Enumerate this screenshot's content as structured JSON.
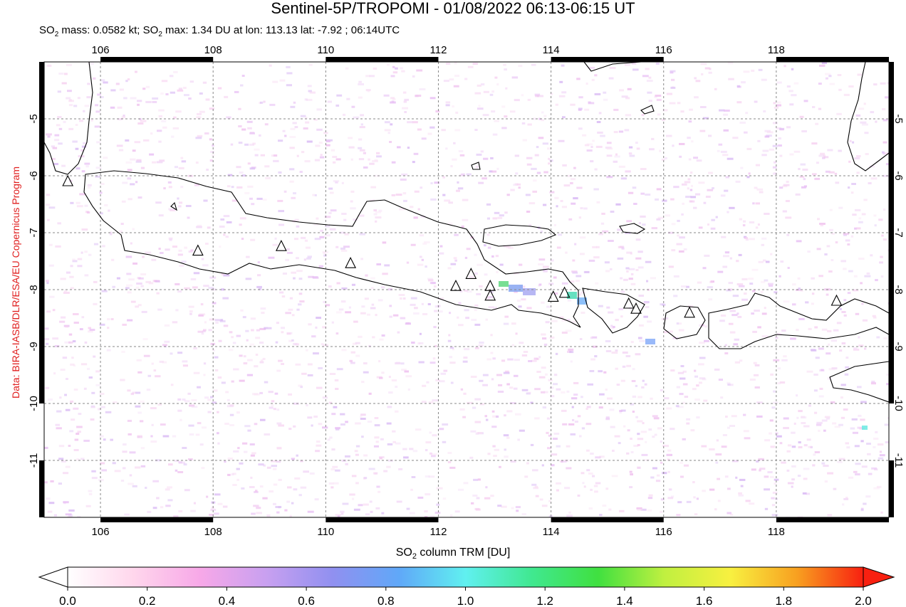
{
  "title": "Sentinel-5P/TROPOMI - 01/08/2022 06:13-06:15 UT",
  "subtitle": {
    "mass_prefix": "SO",
    "mass_sub": "2",
    "mass_text": " mass: 0.0582 kt; SO",
    "max_sub": "2",
    "max_text": " max: 1.34 DU at lon: 113.13 lat: -7.92 ; 06:14UTC"
  },
  "credit": "Data: BIRA-IASB/DLR/ESA/EU Copernicus Program",
  "map": {
    "lon_range": [
      105.0,
      120.0
    ],
    "lat_range": [
      -12.0,
      -4.0
    ],
    "lon_ticks": [
      "106",
      "108",
      "110",
      "112",
      "114",
      "116",
      "118"
    ],
    "lat_ticks": [
      "-5",
      "-6",
      "-7",
      "-8",
      "-9",
      "-10",
      "-11"
    ],
    "grid": "dashed",
    "volcano_marker": "triangle-outline",
    "volcanoes": [
      {
        "lon": 105.42,
        "lat": -6.1
      },
      {
        "lon": 107.73,
        "lat": -7.32
      },
      {
        "lon": 109.21,
        "lat": -7.24
      },
      {
        "lon": 110.44,
        "lat": -7.54
      },
      {
        "lon": 112.31,
        "lat": -7.94
      },
      {
        "lon": 112.58,
        "lat": -7.73
      },
      {
        "lon": 112.92,
        "lat": -7.94
      },
      {
        "lon": 112.92,
        "lat": -8.11
      },
      {
        "lon": 114.04,
        "lat": -8.13
      },
      {
        "lon": 114.24,
        "lat": -8.06
      },
      {
        "lon": 115.38,
        "lat": -8.25
      },
      {
        "lon": 115.51,
        "lat": -8.34
      },
      {
        "lon": 116.46,
        "lat": -8.41
      },
      {
        "lon": 119.07,
        "lat": -8.2
      }
    ]
  },
  "colorbar": {
    "label_prefix": "SO",
    "label_sub": "2",
    "label_suffix": " column TRM [DU]",
    "ticks": [
      "0.0",
      "0.2",
      "0.4",
      "0.6",
      "0.8",
      "1.0",
      "1.2",
      "1.4",
      "1.6",
      "1.8",
      "2.0"
    ],
    "colors": [
      "#ffffff",
      "#ffd6ec",
      "#f7a8e8",
      "#c8a0f0",
      "#9090f0",
      "#60a8f8",
      "#60f0f0",
      "#40e890",
      "#40e040",
      "#c0f040",
      "#f8f040",
      "#f8a020",
      "#f82010"
    ]
  }
}
